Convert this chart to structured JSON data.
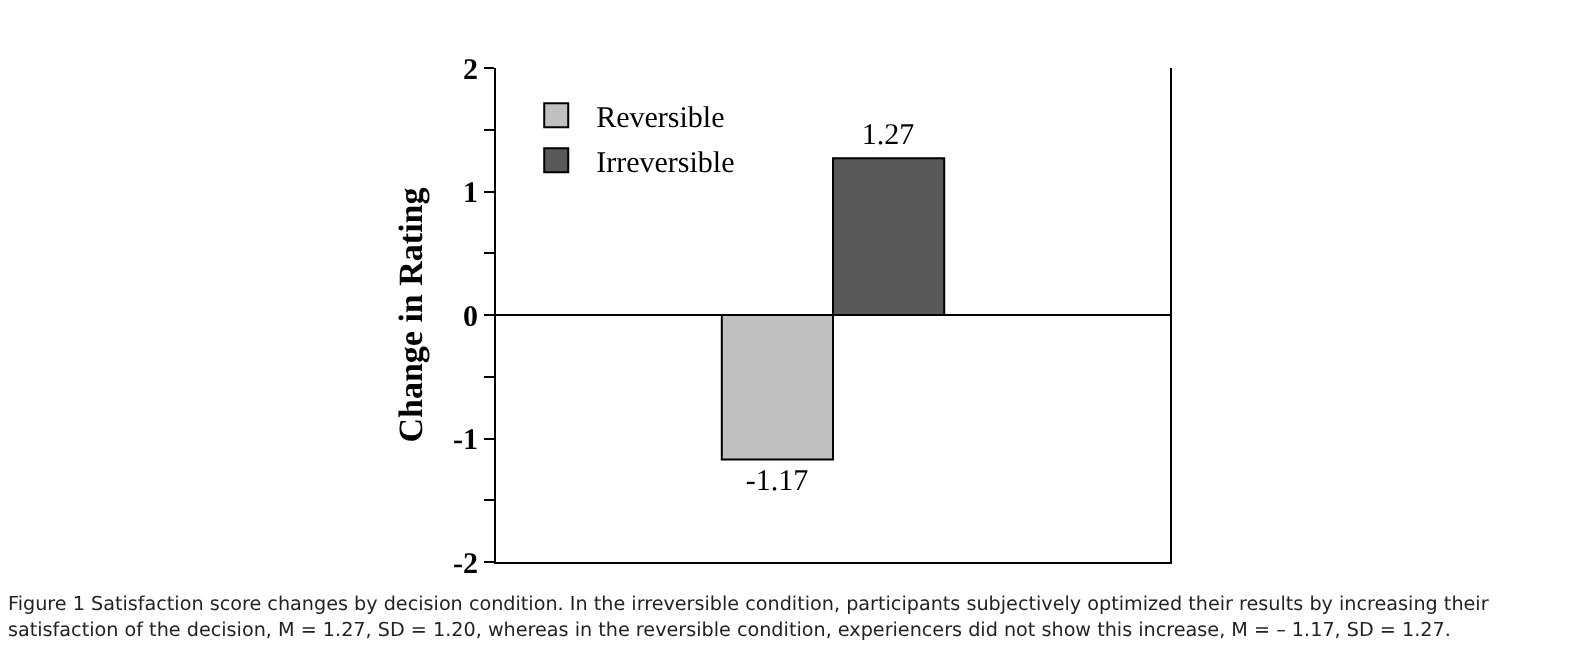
{
  "chart_data": {
    "type": "bar",
    "ylabel": "Change in Rating",
    "categories": [
      null
    ],
    "series": [
      {
        "name": "Reversible",
        "color": "#c0c0c0",
        "values": [
          -1.17
        ]
      },
      {
        "name": "Irreversible",
        "color": "#595959",
        "values": [
          1.27
        ]
      }
    ],
    "ylim": [
      -2,
      2
    ],
    "yticks": [
      -2,
      {
        "value": -1.5,
        "label": null
      },
      -1,
      {
        "value": -0.5,
        "label": null
      },
      0,
      {
        "value": 0.5,
        "label": null
      },
      1,
      {
        "value": 1.5,
        "label": null
      },
      2
    ],
    "data_labels": true,
    "legend": "top left",
    "grid": false,
    "ref_lines": [
      {
        "axis": "y",
        "value": 0,
        "color": "#000000"
      }
    ],
    "annotations": [
      "Figure 1 Satisfaction score changes by decision condition. In the irreversible condition, participants subjectively optimized their results by increasing their satisfaction of the decision, M = 1.27, SD = 1.20, whereas in the reversible condition, experiencers did not show this increase, M = – 1.17, SD = 1.27."
    ]
  }
}
